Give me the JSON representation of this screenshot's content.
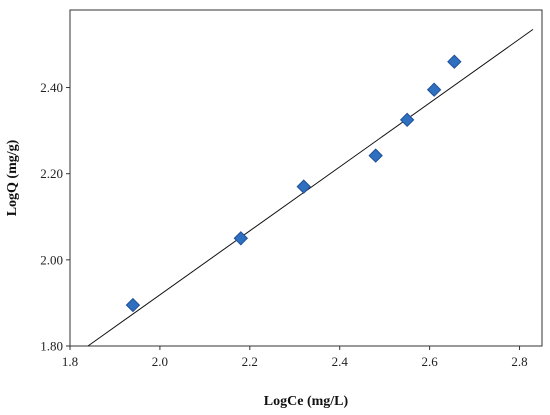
{
  "chart_data": {
    "type": "scatter",
    "title": "",
    "xlabel": "LogCe (mg/L)",
    "ylabel": "LogQ (mg/g)",
    "xlim": [
      1.8,
      2.85
    ],
    "ylim": [
      1.8,
      2.58
    ],
    "x_ticks": [
      "1.8",
      "2.0",
      "2.2",
      "2.4",
      "2.6",
      "2.8"
    ],
    "y_ticks": [
      "1.80",
      "2.00",
      "2.20",
      "2.40"
    ],
    "grid": false,
    "legend": "none",
    "marker": "diamond",
    "marker_color": "#2f6fbf",
    "series": [
      {
        "x": [
          1.94,
          2.18,
          2.32,
          2.48,
          2.55,
          2.61,
          2.655
        ],
        "y": [
          1.895,
          2.05,
          2.17,
          2.242,
          2.325,
          2.395,
          2.46
        ]
      }
    ],
    "fit_line": {
      "x": [
        1.84,
        2.83
      ],
      "y": [
        1.8,
        2.535
      ]
    }
  }
}
